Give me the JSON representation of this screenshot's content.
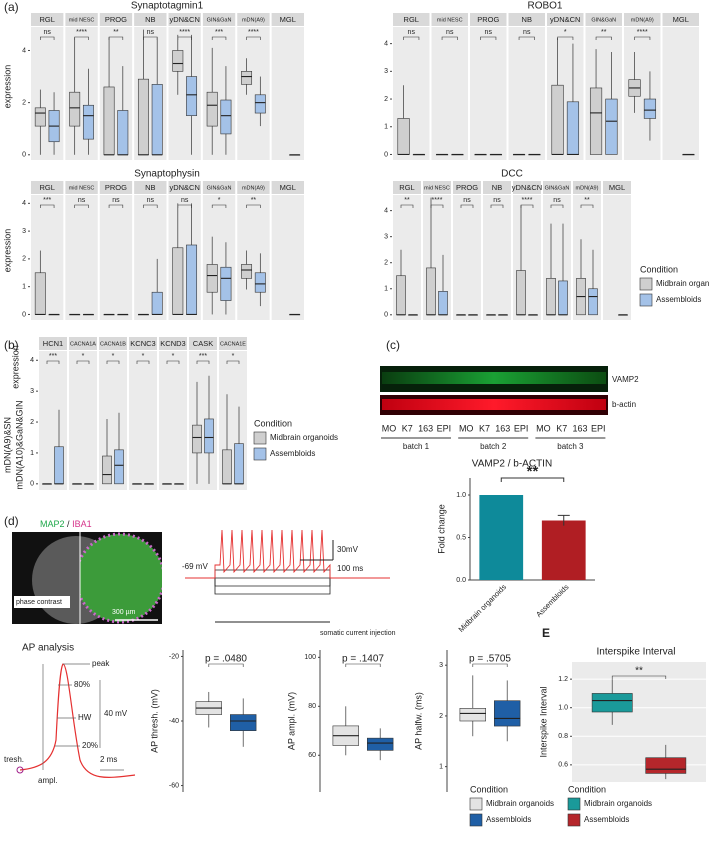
{
  "panel_labels": {
    "a": "(a)",
    "b": "(b)",
    "c": "(c)",
    "d": "(d)",
    "e": "E"
  },
  "chart_data": [
    {
      "type": "box",
      "title": "Synaptotagmin1",
      "y_label": "expression",
      "facets": [
        "RGL",
        "mid NESC",
        "PROG",
        "NB",
        "yDN&CN",
        "GIN&GaN",
        "mDN(A9)",
        "MGL"
      ],
      "facet_colors": [
        "#e8417a",
        "#f39c12",
        "#8bc34a",
        "#27ae60",
        "#1aa3b8",
        "#3498db",
        "#7b3fa0",
        "#d63fb4"
      ],
      "significance": [
        "ns",
        "****",
        "**",
        "ns",
        "****",
        "***",
        "****",
        null
      ],
      "ylim": [
        -0.2,
        4.9
      ],
      "yticks": [
        0,
        2,
        4
      ],
      "series": [
        {
          "name": "Midbrain organoids",
          "color": "#cfcfcf",
          "values": [
            [
              0,
              1.1,
              1.6,
              1.8,
              2.5
            ],
            [
              0,
              1.1,
              1.8,
              2.4,
              4.5
            ],
            [
              0,
              0,
              0,
              2.6,
              4.5
            ],
            [
              0,
              0,
              0,
              2.9,
              4.8
            ],
            [
              2.3,
              3.2,
              3.5,
              4.0,
              4.6
            ],
            [
              0,
              1.1,
              1.9,
              2.4,
              4.1
            ],
            [
              2.3,
              2.7,
              3.0,
              3.2,
              3.7
            ],
            null
          ]
        },
        {
          "name": "Assembloids",
          "color": "#a4c2e8",
          "values": [
            [
              0,
              0.5,
              1.1,
              1.7,
              2.4
            ],
            [
              0,
              0.6,
              1.5,
              1.9,
              3.3
            ],
            [
              0,
              0,
              0,
              1.7,
              3.4
            ],
            [
              0,
              0,
              0,
              2.7,
              4.5
            ],
            [
              0,
              1.5,
              2.3,
              3.0,
              4.6
            ],
            [
              0,
              0.8,
              1.5,
              2.1,
              3.4
            ],
            [
              1.1,
              1.6,
              2.0,
              2.3,
              3.0
            ],
            [
              0,
              0,
              0,
              0,
              0
            ]
          ]
        }
      ]
    },
    {
      "type": "box",
      "title": "ROBO1",
      "facets": [
        "RGL",
        "mid NESC",
        "PROG",
        "NB",
        "yDN&CN",
        "GIN&GaN",
        "mDN(A9)",
        "MGL"
      ],
      "facet_colors": [
        "#e8417a",
        "#f39c12",
        "#8bc34a",
        "#27ae60",
        "#1aa3b8",
        "#3498db",
        "#7b3fa0",
        "#d63fb4"
      ],
      "significance": [
        "ns",
        "ns",
        "ns",
        "ns",
        "*",
        "**",
        "****",
        null
      ],
      "ylim": [
        -0.2,
        4.6
      ],
      "yticks": [
        0,
        1,
        2,
        3,
        4
      ],
      "series": [
        {
          "name": "Midbrain organoids",
          "color": "#cfcfcf",
          "values": [
            [
              0,
              0,
              0,
              1.3,
              2.5
            ],
            [
              0,
              0,
              0,
              0,
              0
            ],
            [
              0,
              0,
              0,
              0,
              0
            ],
            [
              0,
              0,
              0,
              0,
              0
            ],
            [
              0,
              0,
              0,
              2.5,
              4.2
            ],
            [
              0,
              0,
              1.5,
              2.4,
              3.8
            ],
            [
              1.5,
              2.1,
              2.4,
              2.7,
              3.7
            ],
            null
          ]
        },
        {
          "name": "Assembloids",
          "color": "#a4c2e8",
          "values": [
            [
              0,
              0,
              0,
              0,
              0
            ],
            [
              0,
              0,
              0,
              0,
              0
            ],
            [
              0,
              0,
              0,
              0,
              0
            ],
            [
              0,
              0,
              0,
              0,
              0
            ],
            [
              0,
              0,
              0,
              1.9,
              4.0
            ],
            [
              0,
              0,
              1.2,
              2.0,
              3.7
            ],
            [
              0.5,
              1.3,
              1.6,
              2.0,
              3.0
            ],
            [
              0,
              0,
              0,
              0,
              0
            ]
          ]
        }
      ]
    },
    {
      "type": "box",
      "title": "Synaptophysin",
      "y_label": "expression",
      "facets": [
        "RGL",
        "mid NESC",
        "PROG",
        "NB",
        "yDN&CN",
        "GIN&GaN",
        "mDN(A9)",
        "MGL"
      ],
      "facet_colors": [
        "#e8417a",
        "#f39c12",
        "#8bc34a",
        "#27ae60",
        "#1aa3b8",
        "#3498db",
        "#7b3fa0",
        "#d63fb4"
      ],
      "significance": [
        "***",
        "ns",
        "ns",
        "ns",
        "ns",
        "*",
        "**",
        null
      ],
      "ylim": [
        -0.2,
        4.3
      ],
      "yticks": [
        0,
        1,
        2,
        3,
        4
      ],
      "series": [
        {
          "name": "Midbrain organoids",
          "color": "#cfcfcf",
          "values": [
            [
              0,
              0,
              0,
              1.5,
              2.3
            ],
            [
              0,
              0,
              0,
              0,
              0
            ],
            [
              0,
              0,
              0,
              0,
              0
            ],
            [
              0,
              0,
              0,
              0,
              0
            ],
            [
              0,
              0,
              0,
              2.4,
              4.0
            ],
            [
              0,
              0.8,
              1.4,
              1.8,
              2.8
            ],
            [
              0.9,
              1.3,
              1.6,
              1.8,
              2.3
            ],
            null
          ]
        },
        {
          "name": "Assembloids",
          "color": "#a4c2e8",
          "values": [
            [
              0,
              0,
              0,
              0,
              0
            ],
            [
              0,
              0,
              0,
              0,
              0
            ],
            [
              0,
              0,
              0,
              0,
              0
            ],
            [
              0,
              0,
              0,
              0.8,
              2.0
            ],
            [
              0,
              0,
              0,
              2.5,
              4.0
            ],
            [
              0,
              0.5,
              1.3,
              1.7,
              2.6
            ],
            [
              0.3,
              0.8,
              1.1,
              1.5,
              2.2
            ],
            [
              0,
              0,
              0,
              0,
              0
            ]
          ]
        }
      ]
    },
    {
      "type": "box",
      "title": "DCC",
      "facets": [
        "RGL",
        "mid NESC",
        "PROG",
        "NB",
        "yDN&CN",
        "GIN&GaN",
        "mDN(A9)",
        "MGL"
      ],
      "facet_colors": [
        "#e8417a",
        "#f39c12",
        "#8bc34a",
        "#27ae60",
        "#1aa3b8",
        "#3498db",
        "#7b3fa0",
        "#d63fb4"
      ],
      "significance": [
        "**",
        "****",
        "ns",
        "ns",
        "****",
        "ns",
        "**",
        null
      ],
      "ylim": [
        -0.2,
        4.6
      ],
      "yticks": [
        0,
        1,
        2,
        3,
        4
      ],
      "legend_title": "Condition",
      "series": [
        {
          "name": "Midbrain organoids",
          "color": "#cfcfcf",
          "values": [
            [
              0,
              0,
              0,
              1.5,
              2.5
            ],
            [
              0,
              0,
              0,
              1.8,
              4.5
            ],
            [
              0,
              0,
              0,
              0,
              0
            ],
            [
              0,
              0,
              0,
              0,
              0
            ],
            [
              0,
              0,
              0,
              1.7,
              4.2
            ],
            [
              0,
              0,
              0,
              1.4,
              3.5
            ],
            [
              0,
              0,
              0.7,
              1.4,
              2.9
            ],
            null
          ]
        },
        {
          "name": "Assembloids",
          "color": "#a4c2e8",
          "values": [
            [
              0,
              0,
              0,
              0,
              0
            ],
            [
              0,
              0,
              0,
              0.9,
              2.3
            ],
            [
              0,
              0,
              0,
              0,
              0
            ],
            [
              0,
              0,
              0,
              0,
              0
            ],
            [
              0,
              0,
              0,
              0,
              0
            ],
            [
              0,
              0,
              0,
              1.3,
              3.5
            ],
            [
              0,
              0,
              0.7,
              1.0,
              2.5
            ],
            [
              0,
              0,
              0,
              0,
              0
            ]
          ]
        }
      ]
    },
    {
      "type": "box",
      "y_label": "expression",
      "group_labels": [
        {
          "text": "mDN(A9)&SN",
          "color": "#7b3fa0"
        },
        {
          "text": "mDN(A10)&GaN&GIN",
          "color": "#1aa3b8"
        }
      ],
      "facets": [
        "HCN1",
        "CACNA1A",
        "CACNA1B",
        "KCNC3",
        "KCND3",
        "CASK",
        "CACNA1E"
      ],
      "significance": [
        "***",
        "*",
        "*",
        "*",
        "*",
        "***",
        "*"
      ],
      "ylim": [
        -0.2,
        4.3
      ],
      "yticks": [
        0,
        1,
        2,
        3,
        4
      ],
      "legend_title": "Condition",
      "series": [
        {
          "name": "Midbrain organoids",
          "color": "#cfcfcf",
          "values": [
            [
              0,
              0,
              0,
              0,
              0
            ],
            [
              0,
              0,
              0,
              0,
              0
            ],
            [
              0,
              0,
              0.3,
              0.9,
              2.1
            ],
            [
              0,
              0,
              0,
              0,
              0
            ],
            [
              0,
              0,
              0,
              0,
              0
            ],
            [
              0,
              1.0,
              1.5,
              1.9,
              3.3
            ],
            [
              0,
              0,
              0,
              1.1,
              2.9
            ]
          ]
        },
        {
          "name": "Assembloids",
          "color": "#a4c2e8",
          "values": [
            [
              0,
              0,
              0,
              1.2,
              2.4
            ],
            [
              0,
              0,
              0,
              0,
              0
            ],
            [
              0,
              0,
              0.6,
              1.1,
              2.3
            ],
            [
              0,
              0,
              0,
              0,
              0
            ],
            [
              0,
              0,
              0,
              0,
              0
            ],
            [
              0,
              1.0,
              1.5,
              2.1,
              3.5
            ],
            [
              0,
              0,
              0,
              1.3,
              2.5
            ]
          ]
        }
      ]
    },
    {
      "type": "bar",
      "title": "VAMP2 / b-ACTIN",
      "y_label": "Fold change",
      "categories": [
        "Midbrain organoids",
        "Assembloids"
      ],
      "values": [
        1.0,
        0.7
      ],
      "errors": [
        null,
        0.06
      ],
      "colors": [
        "#0e8a9a",
        "#b01e23"
      ],
      "significance": "**",
      "ylim": [
        0,
        1.2
      ],
      "yticks": [
        {
          "value": 0,
          "label": "0.0"
        },
        0.5,
        {
          "value": 1,
          "label": "1.0"
        }
      ]
    },
    {
      "type": "box",
      "y_label": "AP thresh. (mV)",
      "significance": [
        "p = .0480"
      ],
      "significance_color": "#e8312a",
      "ylim": [
        -62,
        -18
      ],
      "yticks": [
        -60,
        -40,
        -20
      ],
      "series": [
        {
          "name": "Midbrain organoids",
          "color": "#e3e3e3",
          "values": [
            [
              -42,
              -38,
              -36,
              -34,
              -31
            ]
          ]
        },
        {
          "name": "Assembloids",
          "color": "#1f5fa6",
          "values": [
            [
              -48,
              -43,
              -40,
              -38,
              -33
            ]
          ]
        }
      ]
    },
    {
      "type": "box",
      "y_label": "AP ampl. (mV)",
      "significance": [
        "p = .1407"
      ],
      "ylim": [
        45,
        103
      ],
      "yticks": [
        60,
        80,
        100
      ],
      "series": [
        {
          "name": "Midbrain organoids",
          "color": "#e3e3e3",
          "values": [
            [
              60,
              64,
              68,
              72,
              80
            ]
          ]
        },
        {
          "name": "Assembloids",
          "color": "#1f5fa6",
          "values": [
            [
              58,
              62,
              65,
              67,
              71
            ]
          ]
        }
      ]
    },
    {
      "type": "box",
      "y_label": "AP halfw. (ms)",
      "significance": [
        "p = .5705"
      ],
      "legend_title": "Condition",
      "ylim": [
        0.5,
        3.3
      ],
      "yticks": [
        1,
        2,
        3
      ],
      "series": [
        {
          "name": "Midbrain organoids",
          "color": "#e3e3e3",
          "values": [
            [
              1.6,
              1.9,
              2.05,
              2.15,
              2.8
            ]
          ]
        },
        {
          "name": "Assembloids",
          "color": "#1f5fa6",
          "values": [
            [
              1.5,
              1.8,
              1.95,
              2.3,
              2.7
            ]
          ]
        }
      ]
    },
    {
      "type": "box",
      "title": "Interspike Interval",
      "y_label": "Interspike Interval",
      "significance": [
        "**"
      ],
      "legend_title": "Condition",
      "grid": true,
      "ylim": [
        0.48,
        1.32
      ],
      "yticks": [
        0.6,
        0.8,
        {
          "value": 1,
          "label": "1.0"
        },
        1.2
      ],
      "series": [
        {
          "name": "Midbrain organoids",
          "color": "#1a9a9a",
          "values": [
            [
              0.88,
              0.97,
              1.05,
              1.1,
              1.2
            ]
          ]
        },
        {
          "name": "Assembloids",
          "color": "#b5262b",
          "values": [
            [
              0.5,
              0.54,
              0.57,
              0.65,
              0.74
            ]
          ]
        }
      ]
    }
  ],
  "blot": {
    "bands": [
      "VAMP2",
      "b-actin"
    ],
    "lanes": [
      "MO",
      "K7",
      "163",
      "EPI",
      "MO",
      "K7",
      "163",
      "EPI",
      "MO",
      "K7",
      "163",
      "EPI"
    ],
    "batches": [
      "batch 1",
      "batch 2",
      "batch 3"
    ]
  },
  "imaging": {
    "stain_1": "MAP2",
    "separator": "/",
    "stain_2": "IBA1",
    "phase": "phase contrast",
    "scale": "300 µm"
  },
  "trace": {
    "v_scale": "30mV",
    "t_scale": "100 ms",
    "rest": "-69 mV",
    "injection": "somatic current injection"
  },
  "ap_analysis": {
    "title": "AP analysis",
    "peak": "peak",
    "p80": "80%",
    "hw": "HW",
    "p20": "20%",
    "thresh": "tresh.",
    "ampl": "ampl.",
    "v_scale": "40 mV",
    "t_scale": "2 ms"
  }
}
